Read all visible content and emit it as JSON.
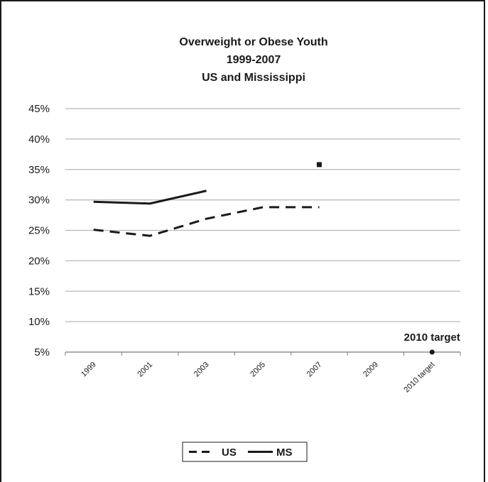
{
  "chart_data": {
    "type": "line",
    "title": [
      "Overweight or Obese Youth",
      "1999-2007",
      "US and Mississippi"
    ],
    "categories": [
      "1999",
      "2001",
      "2003",
      "2005",
      "2007",
      "2009",
      "2010 target"
    ],
    "ylim": [
      5,
      45
    ],
    "yticks": [
      5,
      10,
      15,
      20,
      25,
      30,
      35,
      40,
      45
    ],
    "ytick_labels": [
      "5%",
      "10%",
      "15%",
      "20%",
      "25%",
      "30%",
      "35%",
      "40%",
      "45%"
    ],
    "grid": true,
    "legend_position": "bottom",
    "series": [
      {
        "name": "US",
        "style": "dashed",
        "color": "#1a1a1a",
        "values": [
          25.1,
          24.1,
          26.9,
          28.8,
          28.8,
          null,
          null
        ]
      },
      {
        "name": "MS",
        "style": "solid",
        "color": "#1a1a1a",
        "values": [
          29.7,
          29.4,
          31.5,
          null,
          35.8,
          null,
          null
        ]
      }
    ],
    "target": {
      "category": "2010 target",
      "value": 5,
      "label": "2010 target"
    }
  }
}
